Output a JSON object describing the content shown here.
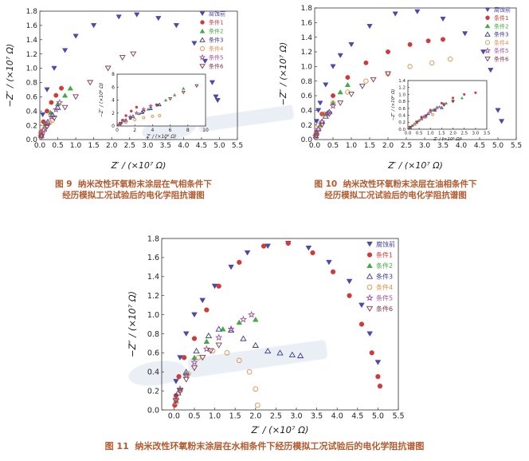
{
  "figures": [
    {
      "number": "图 9",
      "caption_line1": "纳米改性环氧粉末涂层在气相条件下",
      "caption_line2": "经历模拟工况试验后的电化学阻抗谱图"
    },
    {
      "number": "图 10",
      "caption_line1": "纳米改性环氧粉末涂层在油相条件下",
      "caption_line2": "经历模拟工况试验后的电化学阻抗谱图"
    },
    {
      "number": "图 11",
      "caption_line1": "纳米改性环氧粉末涂层在水相条件下经历模拟工况试验后的电化学阻抗谱图",
      "caption_line2": ""
    }
  ],
  "colors": {
    "腐蚀前": "#4a4aa8",
    "条件1": "#d03a3a",
    "条件2": "#44aa44",
    "条件3": "#3a3a90",
    "条件4": "#e0904a",
    "条件5": "#a050a0",
    "条件6": "#803848"
  },
  "chart_data": [
    {
      "type": "scatter",
      "id": "fig9",
      "xlabel": "Z′ / (×10⁷ Ω)",
      "ylabel": "−Z″ / (×10⁷ Ω)",
      "xlim": [
        0,
        5.5
      ],
      "ylim": [
        0,
        1.8
      ],
      "xticks": [
        "0.0",
        "0.5",
        "1.0",
        "1.5",
        "2.0",
        "2.5",
        "3.0",
        "3.5",
        "4.0",
        "4.5",
        "5.0",
        "5.5"
      ],
      "yticks": [
        "0.0",
        "0.2",
        "0.4",
        "0.6",
        "0.8",
        "1.0",
        "1.2",
        "1.4",
        "1.6",
        "1.8"
      ],
      "series": [
        {
          "name": "腐蚀前",
          "marker": "tri-down-filled",
          "x": [
            0.08,
            0.2,
            0.4,
            0.7,
            1.0,
            1.5,
            2.2,
            2.7,
            3.3,
            3.8,
            4.3,
            4.6,
            4.8,
            4.9,
            4.95
          ],
          "y": [
            0.35,
            0.7,
            1.0,
            1.25,
            1.45,
            1.6,
            1.72,
            1.75,
            1.7,
            1.6,
            1.35,
            1.1,
            0.8,
            0.6,
            0.55
          ]
        },
        {
          "name": "条件1",
          "marker": "circle-filled",
          "x": [
            0.03,
            0.1,
            0.2,
            0.32,
            0.45,
            0.6
          ],
          "y": [
            0.1,
            0.25,
            0.4,
            0.52,
            0.62,
            0.72
          ]
        },
        {
          "name": "条件2",
          "marker": "tri-up-filled",
          "x": [
            0.05,
            0.15,
            0.3,
            0.5,
            0.7,
            0.85
          ],
          "y": [
            0.08,
            0.22,
            0.38,
            0.5,
            0.62,
            0.72
          ]
        },
        {
          "name": "条件3",
          "marker": "tri-up-open",
          "x": [
            0.04,
            0.12,
            0.22,
            0.35,
            0.5
          ],
          "y": [
            0.06,
            0.15,
            0.25,
            0.35,
            0.45
          ]
        },
        {
          "name": "条件4",
          "marker": "circle-open",
          "x": [
            0.02,
            0.06,
            0.12,
            0.2,
            0.28,
            0.35
          ],
          "y": [
            0.04,
            0.09,
            0.15,
            0.2,
            0.24,
            0.27
          ]
        },
        {
          "name": "条件5",
          "marker": "star-open",
          "x": [
            0.04,
            0.1,
            0.2,
            0.32,
            0.45,
            0.55
          ],
          "y": [
            0.05,
            0.13,
            0.22,
            0.32,
            0.42,
            0.52
          ]
        },
        {
          "name": "条件6",
          "marker": "tri-down-open",
          "x": [
            0.05,
            0.2,
            0.4,
            0.7,
            1.0,
            1.4,
            1.9,
            2.3,
            2.6
          ],
          "y": [
            0.05,
            0.18,
            0.3,
            0.45,
            0.6,
            0.8,
            1.0,
            1.15,
            1.2
          ]
        }
      ],
      "inset": {
        "xlabel": "Z′ / (×10⁶ Ω)",
        "ylabel": "−Z″ / (×10⁶ Ω)",
        "xlim": [
          0,
          10
        ],
        "ylim": [
          0,
          8
        ],
        "xticks": [
          "0",
          "2",
          "4",
          "6",
          "8",
          "10"
        ],
        "yticks": [
          "0",
          "2",
          "4",
          "6",
          "8"
        ],
        "series": [
          {
            "name": "条件1",
            "marker": "circle-filled",
            "x": [
              0.2,
              0.6,
              1.0,
              1.6,
              2.2
            ],
            "y": [
              0.2,
              0.9,
              1.6,
              2.3,
              2.9
            ]
          },
          {
            "name": "条件2",
            "marker": "tri-up-filled",
            "x": [
              0.5,
              1.5,
              2.5,
              3.5,
              4.5,
              5.5,
              6.5,
              7.5
            ],
            "y": [
              0.5,
              1.2,
              1.9,
              2.6,
              3.3,
              4.0,
              4.8,
              5.8
            ]
          },
          {
            "name": "条件3",
            "marker": "tri-up-open",
            "x": [
              0.3,
              1.0,
              1.8,
              2.8,
              3.8,
              4.8
            ],
            "y": [
              0.3,
              0.9,
              1.5,
              2.1,
              2.7,
              3.3
            ]
          },
          {
            "name": "条件4",
            "marker": "circle-open",
            "x": [
              0.3,
              1.0,
              2.0,
              3.0,
              4.0,
              4.8
            ],
            "y": [
              0.2,
              0.6,
              1.0,
              1.3,
              1.5,
              1.6
            ]
          },
          {
            "name": "条件5",
            "marker": "star-open",
            "x": [
              0.3,
              0.8,
              1.5,
              2.2,
              3.0,
              3.8
            ],
            "y": [
              0.3,
              0.8,
              1.4,
              2.0,
              2.6,
              3.1
            ]
          },
          {
            "name": "条件6",
            "marker": "tri-down-open",
            "x": [
              0.4,
              1.5,
              3.0,
              4.5,
              6.0,
              7.5,
              9.0
            ],
            "y": [
              0.4,
              1.2,
              2.2,
              3.2,
              4.2,
              5.2,
              6.2
            ]
          }
        ]
      }
    },
    {
      "type": "scatter",
      "id": "fig10",
      "xlabel": "Z′ / (×10⁷ Ω)",
      "ylabel": "−Z″ / (×10⁷ Ω)",
      "xlim": [
        0,
        5.5
      ],
      "ylim": [
        0,
        1.8
      ],
      "xticks": [
        "0.0",
        "0.5",
        "1.0",
        "1.5",
        "2.0",
        "2.5",
        "3.0",
        "3.5",
        "4.0",
        "4.5",
        "5.0",
        "5.5"
      ],
      "yticks": [
        "0.0",
        "0.2",
        "0.4",
        "0.6",
        "0.8",
        "1.0",
        "1.2",
        "1.4",
        "1.6",
        "1.8"
      ],
      "series": [
        {
          "name": "腐蚀前",
          "marker": "tri-down-filled",
          "x": [
            0.05,
            0.1,
            0.15,
            0.3,
            0.5,
            0.7,
            1.0,
            1.5,
            2.2,
            2.8,
            3.5,
            4.1,
            4.6,
            4.8,
            5.0,
            5.1
          ],
          "y": [
            0.25,
            0.4,
            0.5,
            0.75,
            1.0,
            1.15,
            1.3,
            1.55,
            1.72,
            1.75,
            1.65,
            1.45,
            1.2,
            0.95,
            0.4,
            0.25
          ]
        },
        {
          "name": "条件1",
          "marker": "circle-filled",
          "x": [
            0.05,
            0.2,
            0.5,
            0.9,
            1.4,
            2.0,
            2.6,
            3.1,
            3.5
          ],
          "y": [
            0.1,
            0.35,
            0.6,
            0.85,
            1.05,
            1.2,
            1.3,
            1.35,
            1.37
          ]
        },
        {
          "name": "条件2",
          "marker": "tri-up-filled",
          "x": [
            0.05,
            0.15,
            0.3,
            0.5,
            0.7,
            0.9
          ],
          "y": [
            0.08,
            0.2,
            0.35,
            0.5,
            0.65,
            0.75
          ]
        },
        {
          "name": "条件3",
          "marker": "tri-up-open",
          "x": [
            0.03,
            0.1,
            0.2,
            0.3,
            0.4
          ],
          "y": [
            0.05,
            0.15,
            0.25,
            0.32,
            0.38
          ]
        },
        {
          "name": "条件4",
          "marker": "circle-open",
          "x": [
            0.02,
            0.1,
            0.25,
            0.5,
            0.9,
            1.4,
            2.0,
            2.6,
            3.2,
            3.7
          ],
          "y": [
            0.05,
            0.2,
            0.35,
            0.5,
            0.65,
            0.8,
            0.9,
            1.0,
            1.05,
            1.1
          ]
        },
        {
          "name": "条件5",
          "marker": "star-open",
          "x": [
            0.03,
            0.1,
            0.2,
            0.35,
            0.5
          ],
          "y": [
            0.05,
            0.14,
            0.24,
            0.36,
            0.46
          ]
        },
        {
          "name": "条件6",
          "marker": "tri-down-open",
          "x": [
            0.05,
            0.2,
            0.4,
            0.7,
            1.0,
            1.3,
            1.6,
            2.0
          ],
          "y": [
            0.05,
            0.2,
            0.35,
            0.5,
            0.62,
            0.73,
            0.82,
            0.9
          ]
        }
      ],
      "inset": {
        "xlabel": "Z′ / (×10⁶ Ω)",
        "ylabel": "−Z″ / (×10⁶ Ω)",
        "xlim": [
          0,
          3.5
        ],
        "ylim": [
          0,
          1.4
        ],
        "xticks": [
          "0.0",
          "0.5",
          "1.0",
          "1.5",
          "2.0",
          "2.5",
          "3.0",
          "3.5"
        ],
        "yticks": [
          "0.0",
          "0.2",
          "0.4",
          "0.6",
          "0.8",
          "1.0",
          "1.2",
          "1.4"
        ],
        "series": [
          {
            "name": "条件1",
            "marker": "circle-filled",
            "x": [
              0.2,
              0.6,
              1.0,
              1.5,
              2.0,
              2.5,
              3.0
            ],
            "y": [
              0.1,
              0.35,
              0.55,
              0.75,
              0.9,
              1.0,
              1.05
            ]
          },
          {
            "name": "条件2",
            "marker": "tri-up-filled",
            "x": [
              0.2,
              0.5,
              0.8,
              1.1,
              1.4,
              1.7,
              2.0,
              2.4
            ],
            "y": [
              0.1,
              0.25,
              0.4,
              0.55,
              0.65,
              0.75,
              0.82,
              0.9
            ]
          },
          {
            "name": "条件3",
            "marker": "tri-up-open",
            "x": [
              0.1,
              0.3,
              0.6,
              0.9,
              1.2,
              1.5
            ],
            "y": [
              0.05,
              0.15,
              0.3,
              0.45,
              0.55,
              0.62
            ]
          },
          {
            "name": "条件4",
            "marker": "circle-open",
            "x": [
              0.1,
              0.3,
              0.5,
              0.8,
              1.1
            ],
            "y": [
              0.05,
              0.15,
              0.25,
              0.35,
              0.42
            ]
          },
          {
            "name": "条件5",
            "marker": "star-open",
            "x": [
              0.1,
              0.4,
              0.7,
              1.0,
              1.3,
              1.6
            ],
            "y": [
              0.05,
              0.2,
              0.35,
              0.5,
              0.62,
              0.72
            ]
          },
          {
            "name": "条件6",
            "marker": "tri-down-open",
            "x": [
              0.1,
              0.4,
              0.8,
              1.2,
              1.6,
              2.0
            ],
            "y": [
              0.05,
              0.2,
              0.38,
              0.55,
              0.7,
              0.8
            ]
          }
        ]
      }
    },
    {
      "type": "scatter",
      "id": "fig11",
      "xlabel": "Z′ / (×10⁷ Ω)",
      "ylabel": "−Z″ / (×10⁷ Ω)",
      "xlim": [
        -0.3,
        5.5
      ],
      "ylim": [
        0,
        1.8
      ],
      "xticks": [
        "0.0",
        "0.5",
        "1.0",
        "1.5",
        "2.0",
        "2.5",
        "3.0",
        "3.5",
        "4.0",
        "4.5",
        "5.0",
        "5.5"
      ],
      "yticks": [
        "0.0",
        "0.2",
        "0.4",
        "0.6",
        "0.8",
        "1.0",
        "1.2",
        "1.4",
        "1.6",
        "1.8"
      ],
      "series": [
        {
          "name": "腐蚀前",
          "marker": "tri-down-filled",
          "x": [
            0.05,
            0.15,
            0.3,
            0.5,
            0.7,
            1.0,
            1.4,
            1.8,
            2.3,
            2.8,
            3.3,
            3.8,
            4.3,
            4.6,
            4.8,
            5.0
          ],
          "y": [
            0.3,
            0.55,
            0.8,
            1.0,
            1.15,
            1.3,
            1.5,
            1.65,
            1.72,
            1.75,
            1.7,
            1.55,
            1.35,
            1.1,
            0.8,
            0.5
          ]
        },
        {
          "name": "条件1",
          "marker": "circle-filled",
          "x": [
            0.02,
            0.05,
            0.12,
            0.25,
            0.5,
            0.8,
            1.1,
            1.6,
            2.2,
            2.8,
            3.4,
            3.9,
            4.3,
            4.6,
            4.85,
            5.0,
            5.05
          ],
          "y": [
            0.05,
            0.15,
            0.35,
            0.55,
            0.75,
            1.05,
            1.3,
            1.55,
            1.72,
            1.75,
            1.65,
            1.45,
            1.2,
            0.9,
            0.6,
            0.35,
            0.25
          ]
        },
        {
          "name": "条件2",
          "marker": "tri-up-filled",
          "x": [
            0.05,
            0.15,
            0.3,
            0.5,
            0.8,
            1.2,
            1.6,
            2.0
          ],
          "y": [
            0.1,
            0.22,
            0.38,
            0.55,
            0.72,
            0.85,
            0.92,
            0.95
          ]
        },
        {
          "name": "条件3",
          "marker": "tri-up-open",
          "x": [
            0.1,
            0.3,
            0.55,
            0.85,
            1.1,
            1.4,
            1.7,
            2.0,
            2.3,
            2.6,
            2.9,
            3.1
          ],
          "y": [
            0.18,
            0.4,
            0.62,
            0.78,
            0.85,
            0.84,
            0.75,
            0.68,
            0.62,
            0.6,
            0.58,
            0.57
          ]
        },
        {
          "name": "条件4",
          "marker": "circle-open",
          "x": [
            0.05,
            0.15,
            0.35,
            0.6,
            0.95,
            1.3,
            1.6,
            1.85,
            2.0,
            2.05
          ],
          "y": [
            0.08,
            0.2,
            0.38,
            0.55,
            0.62,
            0.6,
            0.52,
            0.4,
            0.22,
            0.05
          ]
        },
        {
          "name": "条件5",
          "marker": "star-open",
          "x": [
            0.05,
            0.15,
            0.3,
            0.5,
            0.8,
            1.1,
            1.4,
            1.7,
            1.9
          ],
          "y": [
            0.1,
            0.22,
            0.36,
            0.5,
            0.64,
            0.76,
            0.85,
            0.95,
            1.0
          ]
        },
        {
          "name": "条件6",
          "marker": "tri-down-open",
          "x": [
            0.05,
            0.15,
            0.3,
            0.5,
            0.7,
            0.9,
            1.1
          ],
          "y": [
            0.1,
            0.2,
            0.32,
            0.44,
            0.55,
            0.62,
            0.68
          ]
        }
      ]
    }
  ]
}
